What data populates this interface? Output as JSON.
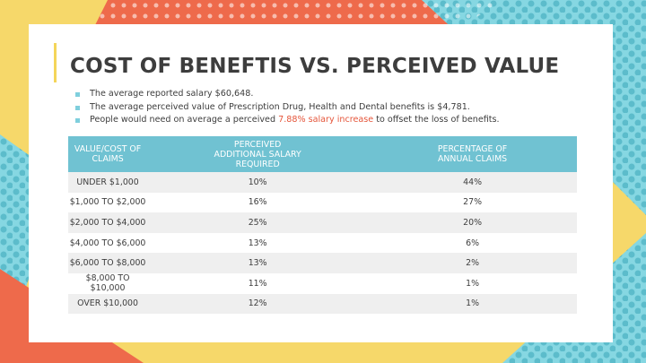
{
  "header": {
    "title": "COST OF BENEFTIS VS. PERCEIVED VALUE"
  },
  "bullets": [
    {
      "parts": [
        "The average reported salary $60,648."
      ]
    },
    {
      "parts": [
        "The average perceived value of Prescription Drug, Health and Dental benefits is $4,781."
      ]
    },
    {
      "parts": [
        "People would need on average a perceived ",
        "7.88% salary increase",
        " to offset the loss of benefits."
      ]
    }
  ],
  "table": {
    "columns": [
      "VALUE/COST OF CLAIMS",
      "PERCEIVED ADDITIONAL SALARY REQUIRED",
      "PERCENTAGE OF ANNUAL CLAIMS"
    ],
    "rows": [
      [
        "UNDER $1,000",
        "10%",
        "44%"
      ],
      [
        "$1,000 TO $2,000",
        "16%",
        "27%"
      ],
      [
        "$2,000 TO $4,000",
        "25%",
        "20%"
      ],
      [
        "$4,000 TO $6,000",
        "13%",
        "6%"
      ],
      [
        "$6,000 TO $8,000",
        "13%",
        "2%"
      ],
      [
        "$8,000 TO $10,000",
        "11%",
        "1%"
      ],
      [
        "OVER $10,000",
        "12%",
        "1%"
      ]
    ]
  }
}
